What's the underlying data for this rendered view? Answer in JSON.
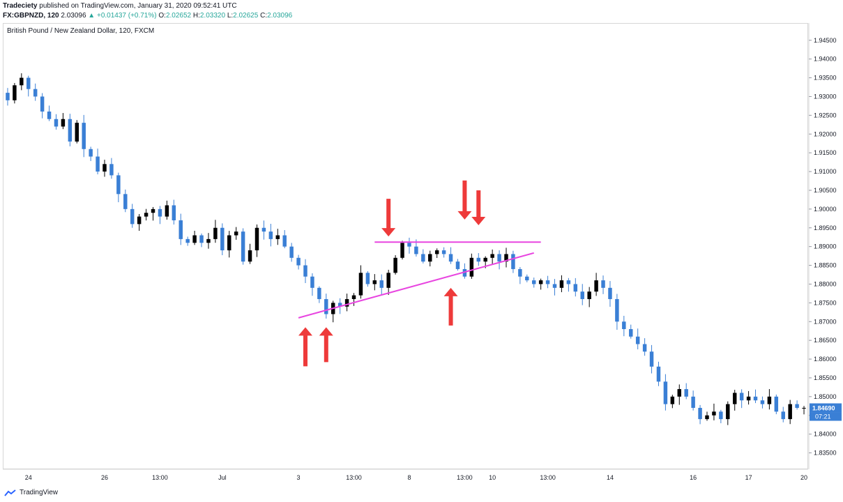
{
  "header": {
    "author": "Tradeciety",
    "published": "published on TradingView.com, January 31, 2020 09:52:41 UTC",
    "symbol": "FX:GBPNZD, 120",
    "last": "2.03096",
    "change": "▲ +0.01437 (+0.71%)",
    "o_label": "O:",
    "o_val": "2.02652",
    "h_label": "H:",
    "h_val": "2.03320",
    "l_label": "L:",
    "l_val": "2.02625",
    "c_label": "C:",
    "c_val": "2.03096"
  },
  "footer": {
    "brand": "TradingView"
  },
  "colors": {
    "up": "#000000",
    "down": "#3a7fd5",
    "annotation": "#e845e0",
    "arrow": "#ee3a3a",
    "tag_bg": "#3a7fd5"
  },
  "chart_data": {
    "type": "candlestick",
    "title": "British Pound / New Zealand Dollar, 120, FXCM",
    "y_ticks": [
      1.945,
      1.94,
      1.935,
      1.93,
      1.925,
      1.92,
      1.915,
      1.91,
      1.905,
      1.9,
      1.895,
      1.89,
      1.885,
      1.88,
      1.875,
      1.87,
      1.865,
      1.86,
      1.855,
      1.85,
      1.845,
      1.84,
      1.835
    ],
    "y_tick_labels": [
      "1.94500",
      "1.94000",
      "1.93500",
      "1.93000",
      "1.92500",
      "1.92000",
      "1.91500",
      "1.91000",
      "1.90500",
      "1.90000",
      "1.89500",
      "1.89000",
      "1.88500",
      "1.88000",
      "1.87500",
      "1.87000",
      "1.86500",
      "1.86000",
      "1.85500",
      "1.85000",
      "",
      "1.84000",
      "1.83500"
    ],
    "ylim": [
      1.8325,
      1.947
    ],
    "x_tick_labels": [
      "24",
      "26",
      "13:00",
      "Jul",
      "3",
      "13:00",
      "8",
      "13:00",
      "10",
      "13:00",
      "14",
      "16",
      "17",
      "20"
    ],
    "x_tick_candle": [
      3,
      14,
      22,
      31,
      42,
      50,
      58,
      66,
      70,
      78,
      87,
      99,
      107,
      115
    ],
    "last_price_label": "1.84690",
    "countdown_label": "07:21",
    "closes": [
      1.929,
      1.933,
      1.935,
      1.932,
      1.93,
      1.926,
      1.924,
      1.922,
      1.924,
      1.918,
      1.923,
      1.916,
      1.914,
      1.91,
      1.912,
      1.909,
      1.904,
      1.9,
      1.896,
      1.898,
      1.899,
      1.9,
      1.898,
      1.901,
      1.897,
      1.892,
      1.891,
      1.893,
      1.891,
      1.892,
      1.895,
      1.889,
      1.893,
      1.894,
      1.886,
      1.889,
      1.895,
      1.894,
      1.892,
      1.893,
      1.89,
      1.887,
      1.885,
      1.882,
      1.879,
      1.876,
      1.872,
      1.875,
      1.874,
      1.876,
      1.877,
      1.883,
      1.88,
      1.881,
      1.879,
      1.883,
      1.887,
      1.891,
      1.89,
      1.888,
      1.886,
      1.888,
      1.889,
      1.888,
      1.886,
      1.884,
      1.882,
      1.887,
      1.886,
      1.887,
      1.888,
      1.886,
      1.888,
      1.884,
      1.882,
      1.881,
      1.88,
      1.881,
      1.88,
      1.879,
      1.881,
      1.88,
      1.878,
      1.876,
      1.878,
      1.881,
      1.879,
      1.876,
      1.87,
      1.868,
      1.866,
      1.864,
      1.862,
      1.858,
      1.854,
      1.848,
      1.85,
      1.852,
      1.85,
      1.847,
      1.844,
      1.845,
      1.846,
      1.844,
      1.848,
      1.851,
      1.849,
      1.85,
      1.849,
      1.848,
      1.85,
      1.846,
      1.844,
      1.848,
      1.847,
      1.847
    ],
    "annotations": {
      "resistance_label": "",
      "arrows_down": [
        55,
        66,
        68
      ],
      "arrows_up": [
        43,
        46,
        64
      ]
    }
  }
}
